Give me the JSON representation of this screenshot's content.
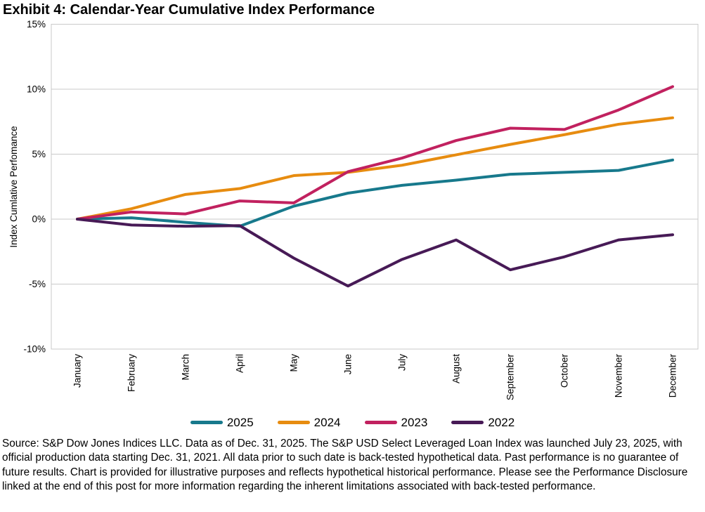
{
  "title": "Exhibit 4: Calendar-Year Cumulative Index Performance",
  "chart_data": {
    "type": "line",
    "title": "Exhibit 4: Calendar-Year Cumulative Index Performance",
    "ylabel": "Index Cumlative Perfomance",
    "xlabel": "",
    "ylim": [
      -10,
      15
    ],
    "yticks": [
      15,
      10,
      5,
      0,
      -5,
      -10
    ],
    "ytick_suffix": "%",
    "grid": true,
    "grid_color": "#c9c9c9",
    "legend_position": "bottom",
    "categories": [
      "January",
      "February",
      "March",
      "April",
      "May",
      "June",
      "July",
      "August",
      "September",
      "October",
      "November",
      "December"
    ],
    "series": [
      {
        "name": "2025",
        "color": "#17798c",
        "values": [
          0,
          0.1,
          -0.25,
          -0.55,
          1.0,
          2.0,
          2.6,
          3.0,
          3.45,
          3.6,
          3.75,
          4.55
        ]
      },
      {
        "name": "2024",
        "color": "#e78c10",
        "values": [
          0,
          0.8,
          1.9,
          2.35,
          3.35,
          3.6,
          4.15,
          4.95,
          5.75,
          6.5,
          7.3,
          7.8
        ]
      },
      {
        "name": "2023",
        "color": "#c1215f",
        "values": [
          0,
          0.55,
          0.4,
          1.4,
          1.25,
          3.65,
          4.7,
          6.05,
          7.0,
          6.9,
          8.4,
          10.2
        ]
      },
      {
        "name": "2022",
        "color": "#471a56",
        "values": [
          0,
          -0.45,
          -0.55,
          -0.5,
          -3.0,
          -5.15,
          -3.1,
          -1.6,
          -3.9,
          -2.9,
          -1.6,
          -1.2
        ]
      }
    ]
  },
  "footer": {
    "text": "Source: S&P Dow Jones Indices LLC. Data as of Dec. 31, 2025. The S&P USD Select Leveraged Loan Index was launched July 23, 2025, with official production data starting Dec. 31, 2021. All data prior to such date is back-tested hypothetical data. Past performance is no guarantee of future results. Chart is provided for illustrative purposes and reflects hypothetical historical performance. Please see the Performance Disclosure linked at the end of this post for more information regarding the inherent limitations associated with back-tested performance."
  }
}
